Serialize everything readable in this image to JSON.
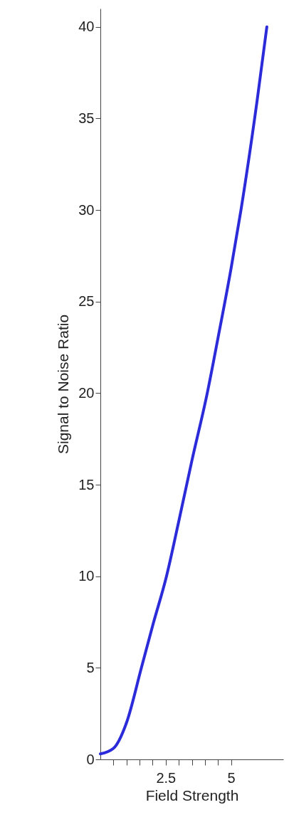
{
  "chart_data": {
    "type": "line",
    "xlabel": "Field Strength",
    "ylabel": "Signal to Noise Ratio",
    "x": [
      0,
      0.5,
      1,
      1.57,
      2,
      2.53,
      3,
      3.5,
      4.09,
      4.5,
      5,
      5.38,
      6,
      6.37
    ],
    "series": [
      {
        "color": "#2b2bd9",
        "values": [
          0.3,
          0.6,
          2,
          5,
          7.3,
          10,
          13,
          16.3,
          20,
          23,
          26.8,
          30,
          36,
          40
        ]
      }
    ],
    "xlim": [
      0,
      7
    ],
    "ylim": [
      0,
      41
    ],
    "xticks": [
      {
        "value": 0.5,
        "label": null
      },
      {
        "value": 1,
        "label": null
      },
      {
        "value": 1.5,
        "label": null
      },
      {
        "value": 2,
        "label": null
      },
      2.5,
      {
        "value": 3,
        "label": null
      },
      {
        "value": 3.5,
        "label": null
      },
      {
        "value": 4,
        "label": null
      },
      {
        "value": 4.5,
        "label": null
      },
      5
    ],
    "yticks": [
      0,
      5,
      10,
      15,
      20,
      25,
      30,
      35,
      40
    ],
    "grid": false,
    "marker": "none",
    "line_style": "solid"
  }
}
